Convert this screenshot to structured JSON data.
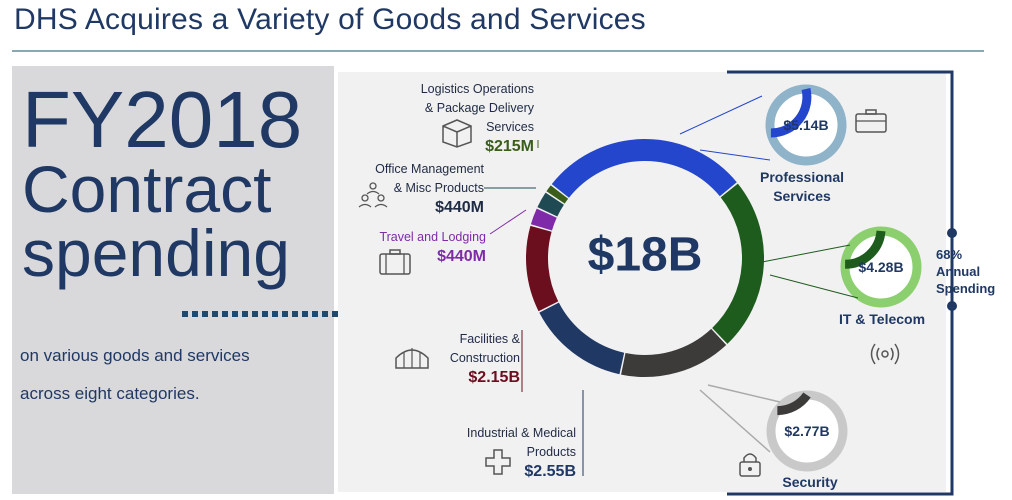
{
  "title": "DHS Acquires a Variety of Goods and Services",
  "left": {
    "line1": "FY2018",
    "line2": "Contract",
    "line3": "spending",
    "sub1": "on various goods and services",
    "sub2": "across eight categories."
  },
  "bracket_label": {
    "pct": "68%",
    "line1": "Annual",
    "line2": "Spending"
  },
  "colors": {
    "navy": "#1f3864",
    "professional": "#2346cc",
    "it": "#1e5c1e",
    "security": "#3d3a3a",
    "industrial": "#1f3864",
    "facilities": "#6b0f1f",
    "travel": "#7f2aa8",
    "office": "#1f4a54",
    "logistics": "#3a5e1a"
  },
  "chart_data": {
    "type": "donut",
    "center_label": "$18B",
    "categories": [
      "Professional Services",
      "IT & Telecom",
      "Security",
      "Industrial & Medical Products",
      "Facilities & Construction",
      "Travel and Lodging",
      "Office Management & Misc Products",
      "Logistics Operations & Package Delivery Services"
    ],
    "values": [
      5.14,
      4.28,
      2.77,
      2.55,
      2.15,
      0.44,
      0.44,
      0.215
    ],
    "value_labels": [
      "$5.14B",
      "$4.28B",
      "$2.77B",
      "$2.55B",
      "$2.15B",
      "$440M",
      "$440M",
      "$215M"
    ],
    "unit": "billion USD"
  },
  "labels": {
    "logistics": {
      "l1": "Logistics Operations",
      "l2": "& Package Delivery",
      "l3": "Services",
      "amt": "$215M"
    },
    "office": {
      "l1": "Office Management",
      "l2": "& Misc Products",
      "amt": "$440M"
    },
    "travel": {
      "l1": "Travel and Lodging",
      "amt": "$440M"
    },
    "facilities": {
      "l1": "Facilities &",
      "l2": "Construction",
      "amt": "$2.15B"
    },
    "industrial": {
      "l1": "Industrial & Medical",
      "l2": "Products",
      "amt": "$2.55B"
    },
    "professional": {
      "l1": "Professional",
      "l2": "Services",
      "amt": "$5.14B"
    },
    "it": {
      "l1": "IT & Telecom",
      "amt": "$4.28B"
    },
    "security": {
      "l1": "Security",
      "amt": "$2.77B"
    }
  },
  "icons": [
    "box-icon",
    "people-icon",
    "suitcase-icon",
    "building-icon",
    "medical-cross-icon",
    "briefcase-icon",
    "signal-icon",
    "lock-icon"
  ]
}
